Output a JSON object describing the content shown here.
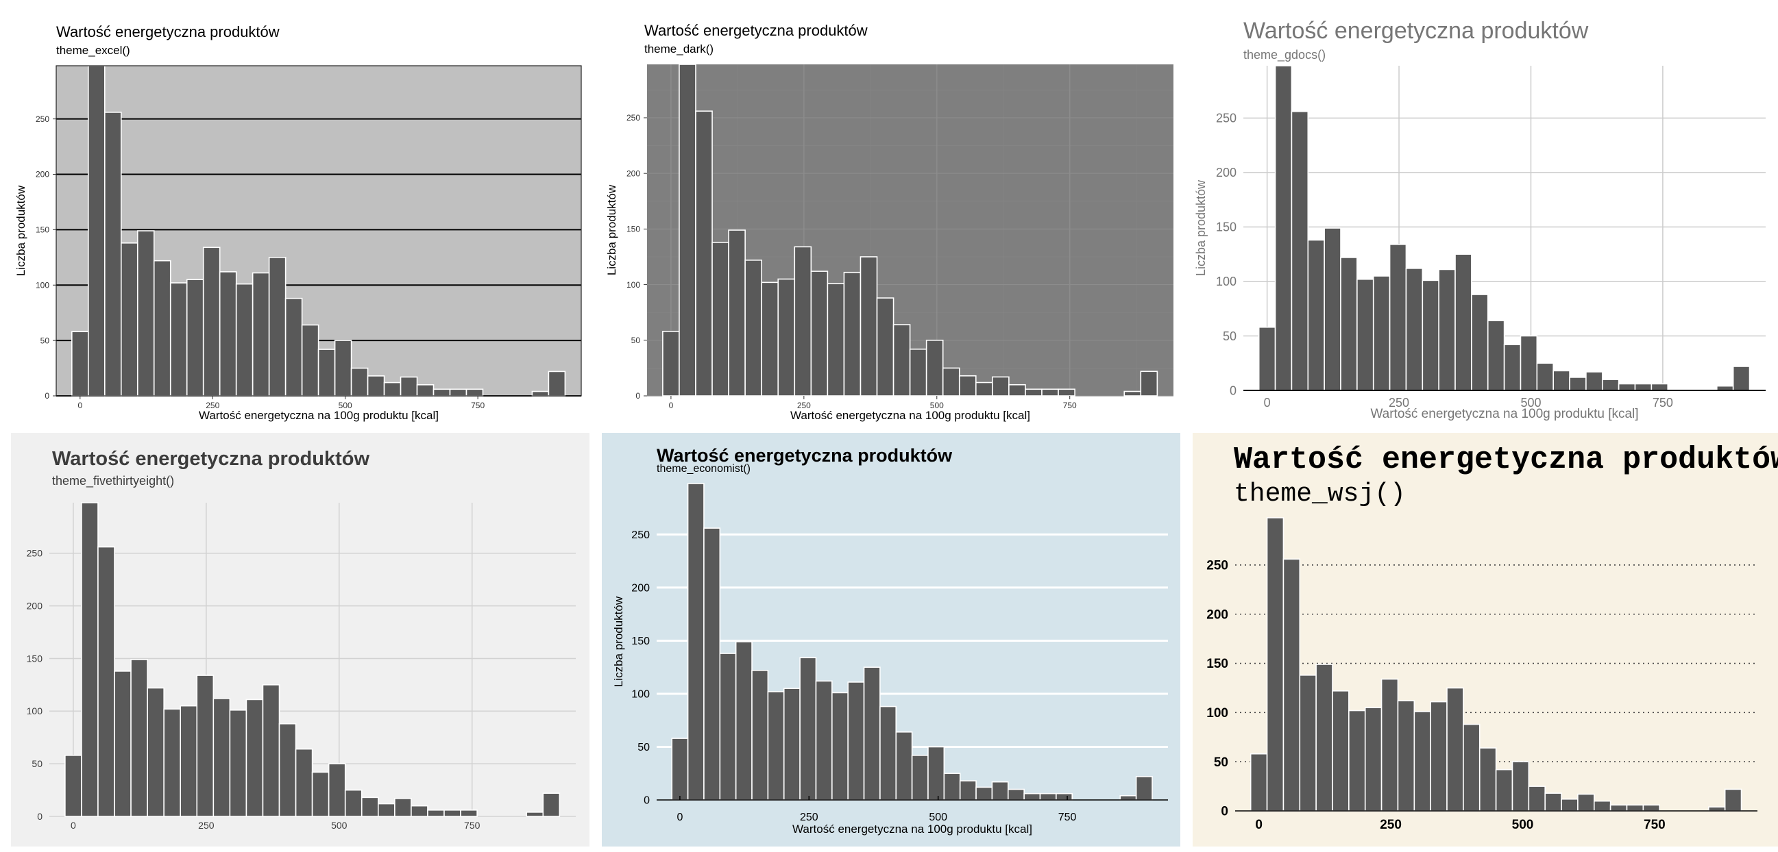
{
  "chart_data": [
    {
      "type": "bar",
      "title": "Wartość energetyczna produktów",
      "subtitle": "theme_excel()",
      "xlabel": "Wartość energetyczna na 100g produktu [kcal]",
      "ylabel": "Liczba produktów",
      "x": [
        0,
        31,
        62,
        93,
        124,
        155,
        186,
        217,
        248,
        279,
        310,
        341,
        372,
        403,
        434,
        465,
        496,
        527,
        558,
        589,
        620,
        651,
        682,
        713,
        744,
        775,
        806,
        837,
        868,
        899
      ],
      "values": [
        58,
        298,
        256,
        138,
        149,
        122,
        102,
        105,
        134,
        112,
        101,
        111,
        125,
        88,
        64,
        42,
        50,
        25,
        18,
        12,
        17,
        10,
        6,
        6,
        6,
        0,
        0,
        0,
        4,
        22
      ],
      "xticks": [
        0,
        250,
        500,
        750
      ],
      "yticks": [
        0,
        50,
        100,
        150,
        200,
        250
      ],
      "xlim": [
        -45,
        945
      ],
      "ylim": [
        0,
        298
      ],
      "grid": "horizontal major"
    },
    {
      "type": "bar",
      "title": "Wartość energetyczna produktów",
      "subtitle": "theme_dark()",
      "xlabel": "Wartość energetyczna na 100g produktu [kcal]",
      "ylabel": "Liczba produktów",
      "x": [
        0,
        31,
        62,
        93,
        124,
        155,
        186,
        217,
        248,
        279,
        310,
        341,
        372,
        403,
        434,
        465,
        496,
        527,
        558,
        589,
        620,
        651,
        682,
        713,
        744,
        775,
        806,
        837,
        868,
        899
      ],
      "values": [
        58,
        298,
        256,
        138,
        149,
        122,
        102,
        105,
        134,
        112,
        101,
        111,
        125,
        88,
        64,
        42,
        50,
        25,
        18,
        12,
        17,
        10,
        6,
        6,
        6,
        0,
        0,
        0,
        4,
        22
      ],
      "xticks": [
        0,
        250,
        500,
        750
      ],
      "yticks": [
        0,
        50,
        100,
        150,
        200,
        250
      ],
      "xlim": [
        -45,
        945
      ],
      "ylim": [
        0,
        298
      ],
      "grid": "major and minor"
    },
    {
      "type": "bar",
      "title": "Wartość energetyczna produktów",
      "subtitle": "theme_gdocs()",
      "xlabel": "Wartość energetyczna na 100g produktu [kcal]",
      "ylabel": "Liczba produktów",
      "x": [
        0,
        31,
        62,
        93,
        124,
        155,
        186,
        217,
        248,
        279,
        310,
        341,
        372,
        403,
        434,
        465,
        496,
        527,
        558,
        589,
        620,
        651,
        682,
        713,
        744,
        775,
        806,
        837,
        868,
        899
      ],
      "values": [
        58,
        298,
        256,
        138,
        149,
        122,
        102,
        105,
        134,
        112,
        101,
        111,
        125,
        88,
        64,
        42,
        50,
        25,
        18,
        12,
        17,
        10,
        6,
        6,
        6,
        0,
        0,
        0,
        4,
        22
      ],
      "xticks": [
        0,
        250,
        500,
        750
      ],
      "yticks": [
        0,
        50,
        100,
        150,
        200,
        250
      ],
      "xlim": [
        -45,
        945
      ],
      "ylim": [
        0,
        298
      ],
      "grid": "major"
    },
    {
      "type": "bar",
      "title": "Wartość energetyczna produktów",
      "subtitle": "theme_fivethirtyeight()",
      "xlabel": "",
      "ylabel": "",
      "x": [
        0,
        31,
        62,
        93,
        124,
        155,
        186,
        217,
        248,
        279,
        310,
        341,
        372,
        403,
        434,
        465,
        496,
        527,
        558,
        589,
        620,
        651,
        682,
        713,
        744,
        775,
        806,
        837,
        868,
        899
      ],
      "values": [
        58,
        298,
        256,
        138,
        149,
        122,
        102,
        105,
        134,
        112,
        101,
        111,
        125,
        88,
        64,
        42,
        50,
        25,
        18,
        12,
        17,
        10,
        6,
        6,
        6,
        0,
        0,
        0,
        4,
        22
      ],
      "xticks": [
        0,
        250,
        500,
        750
      ],
      "yticks": [
        0,
        50,
        100,
        150,
        200,
        250
      ],
      "xlim": [
        -45,
        945
      ],
      "ylim": [
        0,
        298
      ],
      "grid": "major"
    },
    {
      "type": "bar",
      "title": "Wartość energetyczna produktów",
      "subtitle": "theme_economist()",
      "xlabel": "Wartość energetyczna na 100g produktu [kcal]",
      "ylabel": "Liczba produktów",
      "x": [
        0,
        31,
        62,
        93,
        124,
        155,
        186,
        217,
        248,
        279,
        310,
        341,
        372,
        403,
        434,
        465,
        496,
        527,
        558,
        589,
        620,
        651,
        682,
        713,
        744,
        775,
        806,
        837,
        868,
        899
      ],
      "values": [
        58,
        298,
        256,
        138,
        149,
        122,
        102,
        105,
        134,
        112,
        101,
        111,
        125,
        88,
        64,
        42,
        50,
        25,
        18,
        12,
        17,
        10,
        6,
        6,
        6,
        0,
        0,
        0,
        4,
        22
      ],
      "xticks": [
        0,
        250,
        500,
        750
      ],
      "yticks": [
        0,
        50,
        100,
        150,
        200,
        250
      ],
      "xlim": [
        -45,
        945
      ],
      "ylim": [
        0,
        298
      ],
      "grid": "horizontal major"
    },
    {
      "type": "bar",
      "title": "Wartość energetyczna produktów",
      "subtitle": "theme_wsj()",
      "xlabel": "",
      "ylabel": "",
      "x": [
        0,
        31,
        62,
        93,
        124,
        155,
        186,
        217,
        248,
        279,
        310,
        341,
        372,
        403,
        434,
        465,
        496,
        527,
        558,
        589,
        620,
        651,
        682,
        713,
        744,
        775,
        806,
        837,
        868,
        899
      ],
      "values": [
        58,
        298,
        256,
        138,
        149,
        122,
        102,
        105,
        134,
        112,
        101,
        111,
        125,
        88,
        64,
        42,
        50,
        25,
        18,
        12,
        17,
        10,
        6,
        6,
        6,
        0,
        0,
        0,
        4,
        22
      ],
      "xticks": [
        0,
        250,
        500,
        750
      ],
      "yticks": [
        0,
        50,
        100,
        150,
        200,
        250
      ],
      "xlim": [
        -45,
        945
      ],
      "ylim": [
        0,
        298
      ],
      "grid": "horizontal dotted"
    }
  ],
  "colors": {
    "bar_fill": "#595959",
    "bar_outline": "#ffffff",
    "excel_panel": "#c0c0c0",
    "dark_panel": "#7f7f7f",
    "fivethirtyeight_bg": "#f0f0f0",
    "economist_bg": "#d5e4eb",
    "wsj_bg": "#f8f2e4"
  }
}
